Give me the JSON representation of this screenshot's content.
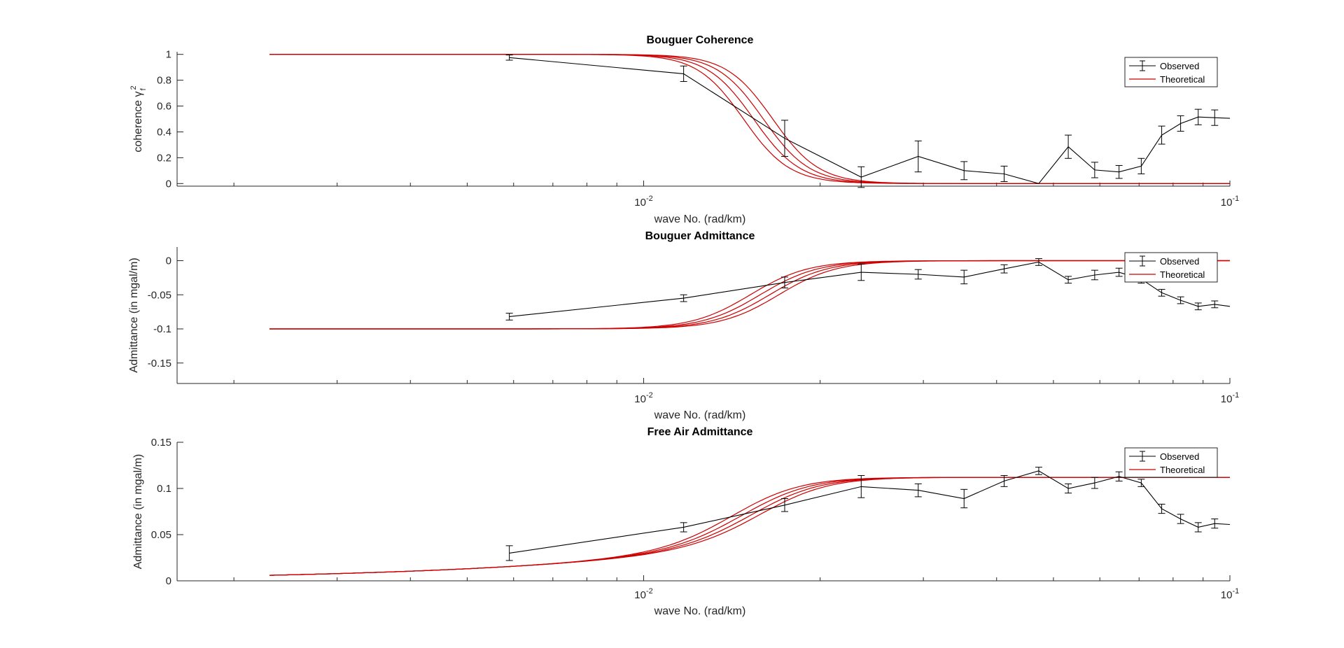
{
  "colors": {
    "observed": "#000000",
    "theoretical": "#cc0000",
    "axis": "#262626",
    "legend_border": "#262626"
  },
  "chart_data": [
    {
      "type": "line",
      "title": "Bouguer Coherence",
      "xlabel": "wave No. (rad/km)",
      "ylabel": "coherence γ",
      "ylabel_sup": "2",
      "ylabel_sub": "f",
      "xscale": "log",
      "xlim": [
        0.0016,
        0.1
      ],
      "ylim": [
        -0.02,
        1.02
      ],
      "yticks": [
        0,
        0.2,
        0.4,
        0.6,
        0.8,
        1
      ],
      "ytick_labels": [
        "0",
        "0.2",
        "0.4",
        "0.6",
        "0.8",
        "1"
      ],
      "xtick_labels": [
        {
          "base": "10",
          "exp": "-2",
          "value": 0.01
        },
        {
          "base": "10",
          "exp": "-1",
          "value": 0.1
        }
      ],
      "legend": {
        "placement": "top-right",
        "entries": [
          "Observed",
          "Theoretical"
        ]
      },
      "theoretical": {
        "x0": 0.0023,
        "y_low": 1.0,
        "y_high": 0.0,
        "centers": [
          0.0148,
          0.0154,
          0.016,
          0.0166
        ],
        "steepness": 5
      },
      "observed": {
        "x": [
          0.0059,
          0.0117,
          0.0174,
          0.0235,
          0.0294,
          0.0352,
          0.0412,
          0.0472,
          0.053,
          0.0588,
          0.0647,
          0.0706,
          0.0765,
          0.0824,
          0.0883,
          0.0942,
          0.1
        ],
        "y": [
          0.975,
          0.85,
          0.35,
          0.05,
          0.21,
          0.1,
          0.075,
          0.0,
          0.285,
          0.105,
          0.09,
          0.135,
          0.375,
          0.465,
          0.515,
          0.51,
          0.505
        ],
        "err": [
          0.02,
          0.06,
          0.14,
          0.08,
          0.12,
          0.07,
          0.06,
          0.0,
          0.09,
          0.06,
          0.05,
          0.06,
          0.07,
          0.06,
          0.06,
          0.06,
          0.0
        ]
      }
    },
    {
      "type": "line",
      "title": "Bouguer Admittance",
      "xlabel": "wave No. (rad/km)",
      "ylabel": "Admittance (in mgal/m)",
      "xscale": "log",
      "xlim": [
        0.0016,
        0.1
      ],
      "ylim": [
        -0.18,
        0.02
      ],
      "yticks": [
        -0.15,
        -0.1,
        -0.05,
        0
      ],
      "ytick_labels": [
        "-0.15",
        "-0.1",
        "-0.05",
        "0"
      ],
      "xtick_labels": [
        {
          "base": "10",
          "exp": "-2",
          "value": 0.01
        },
        {
          "base": "10",
          "exp": "-1",
          "value": 0.1
        }
      ],
      "legend": {
        "placement": "top-right",
        "entries": [
          "Observed",
          "Theoretical"
        ]
      },
      "theoretical": {
        "x0": 0.0023,
        "y_low": -0.1,
        "y_high": 0.0,
        "centers": [
          0.0152,
          0.0158,
          0.0164,
          0.017
        ],
        "steepness": 4,
        "tail": 0.004
      },
      "observed": {
        "x": [
          0.0059,
          0.0117,
          0.0174,
          0.0235,
          0.0294,
          0.0352,
          0.0412,
          0.0472,
          0.053,
          0.0588,
          0.0647,
          0.0706,
          0.0765,
          0.0824,
          0.0883,
          0.0942,
          0.1
        ],
        "y": [
          -0.082,
          -0.055,
          -0.032,
          -0.017,
          -0.02,
          -0.024,
          -0.012,
          -0.002,
          -0.028,
          -0.021,
          -0.017,
          -0.027,
          -0.047,
          -0.058,
          -0.067,
          -0.064,
          -0.067
        ],
        "err": [
          0.005,
          0.005,
          0.008,
          0.012,
          0.007,
          0.01,
          0.006,
          0.005,
          0.005,
          0.007,
          0.006,
          0.006,
          0.005,
          0.005,
          0.005,
          0.005,
          0.0
        ]
      }
    },
    {
      "type": "line",
      "title": "Free Air Admittance",
      "xlabel": "wave No. (rad/km)",
      "ylabel": "Admittance (in mgal/m)",
      "xscale": "log",
      "xlim": [
        0.0016,
        0.1
      ],
      "ylim": [
        0,
        0.15
      ],
      "yticks": [
        0,
        0.05,
        0.1,
        0.15
      ],
      "ytick_labels": [
        "0",
        "0.05",
        "0.1",
        "0.15"
      ],
      "xtick_labels": [
        {
          "base": "10",
          "exp": "-2",
          "value": 0.01
        },
        {
          "base": "10",
          "exp": "-1",
          "value": 0.1
        }
      ],
      "legend": {
        "placement": "top-right",
        "entries": [
          "Observed",
          "Theoretical"
        ]
      },
      "theoretical": {
        "x0": 0.0023,
        "y_low": 0.0,
        "y_high": 0.112,
        "centers": [
          0.0146,
          0.0152,
          0.0158,
          0.0164
        ],
        "steepness": 3.3,
        "tail": 0.012
      },
      "observed": {
        "x": [
          0.0059,
          0.0117,
          0.0174,
          0.0235,
          0.0294,
          0.0352,
          0.0412,
          0.0472,
          0.053,
          0.0588,
          0.0647,
          0.0706,
          0.0765,
          0.0824,
          0.0883,
          0.0942,
          0.1
        ],
        "y": [
          0.03,
          0.058,
          0.082,
          0.102,
          0.098,
          0.089,
          0.108,
          0.119,
          0.1,
          0.106,
          0.113,
          0.106,
          0.078,
          0.067,
          0.058,
          0.062,
          0.061
        ],
        "err": [
          0.008,
          0.005,
          0.007,
          0.012,
          0.007,
          0.01,
          0.006,
          0.004,
          0.005,
          0.006,
          0.005,
          0.004,
          0.005,
          0.005,
          0.005,
          0.005,
          0.0
        ]
      }
    }
  ]
}
